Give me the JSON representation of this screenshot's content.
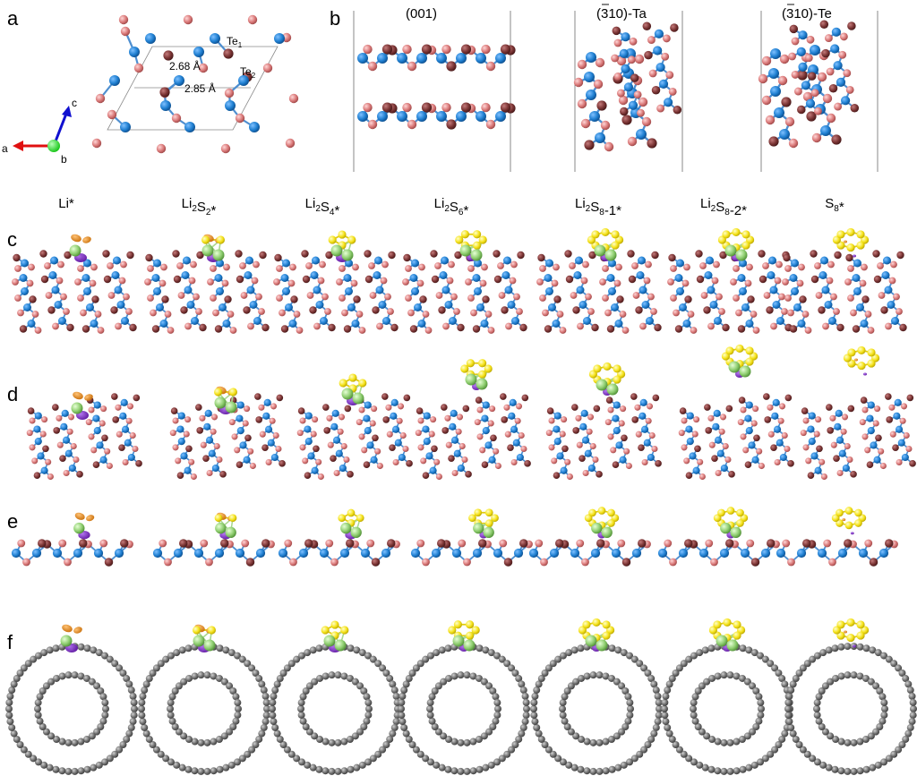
{
  "panels": {
    "a": {
      "letter": "a",
      "atom_labels": [
        "Te",
        "Te"
      ],
      "atom_subscripts": [
        "1",
        "2"
      ],
      "bond_lengths": [
        "2.68 Å",
        "2.85 Å"
      ],
      "axes": [
        "a",
        "b",
        "c"
      ]
    },
    "b": {
      "letter": "b",
      "surface_prefix": "(",
      "surface_bar_digit": "3",
      "surface_suffix": "10)",
      "surfaces": [
        "(001)",
        "-Ta",
        "-Te"
      ]
    },
    "c": {
      "letter": "c"
    },
    "d": {
      "letter": "d"
    },
    "e": {
      "letter": "e"
    },
    "f": {
      "letter": "f"
    }
  },
  "species": [
    {
      "main": "Li",
      "parts": [
        [
          "Li",
          ""
        ],
        [
          "*",
          ""
        ]
      ]
    },
    {
      "main": "Li2S2*",
      "parts": [
        [
          "Li",
          "2"
        ],
        [
          "S",
          "2"
        ],
        [
          "*",
          ""
        ]
      ]
    },
    {
      "main": "Li2S4*",
      "parts": [
        [
          "Li",
          "2"
        ],
        [
          "S",
          "4"
        ],
        [
          "*",
          ""
        ]
      ]
    },
    {
      "main": "Li2S6*",
      "parts": [
        [
          "Li",
          "2"
        ],
        [
          "S",
          "6"
        ],
        [
          "*",
          ""
        ]
      ]
    },
    {
      "main": "Li2S8-1*",
      "parts": [
        [
          "Li",
          "2"
        ],
        [
          "S",
          "8"
        ],
        [
          "-1*",
          ""
        ]
      ]
    },
    {
      "main": "Li2S8-2*",
      "parts": [
        [
          "Li",
          "2"
        ],
        [
          "S",
          "8"
        ],
        [
          "-2*",
          ""
        ]
      ]
    },
    {
      "main": "S8*",
      "parts": [
        [
          "S",
          "8"
        ],
        [
          "*",
          ""
        ]
      ]
    }
  ],
  "colors": {
    "tantalum": "#1f7fd1",
    "tellurium_light": "#d97878",
    "tellurium_dark": "#7a3434",
    "lithium": "#8fce70",
    "sulfur": "#f5e21a",
    "charge_accumulation": "#7a22c9",
    "charge_depletion": "#e48a1a",
    "carbon": "#6e6e6e",
    "axis_a": "#e01010",
    "axis_c": "#1010d0",
    "axis_b": "#22dd22"
  }
}
